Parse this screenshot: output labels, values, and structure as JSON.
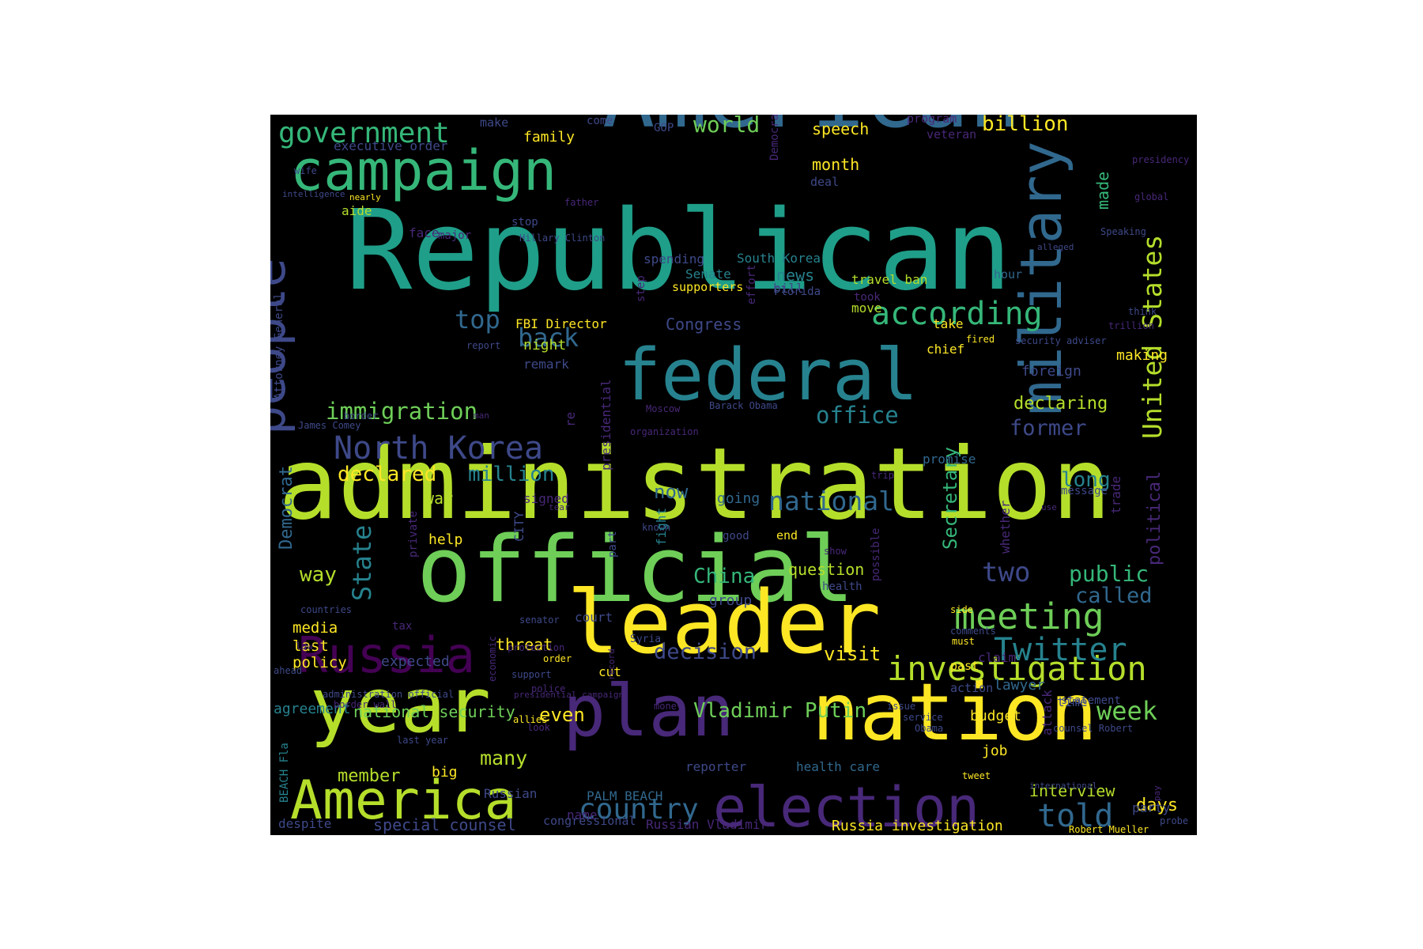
{
  "background": "#000000",
  "palette": {
    "dark_purple": "#440154",
    "purple": "#482878",
    "indigo": "#3e4989",
    "blue": "#31688e",
    "teal": "#26828e",
    "green_teal": "#1f9e89",
    "green": "#35b779",
    "light_green": "#6ece58",
    "lime": "#b5de2b",
    "yellow": "#fde725"
  },
  "words": [
    {
      "text": "administration",
      "color": "#b5de2b"
    },
    {
      "text": "Republican",
      "color": "#1f9e89"
    },
    {
      "text": "official",
      "color": "#6ece58"
    },
    {
      "text": "American",
      "color": "#31688e"
    },
    {
      "text": "nation",
      "color": "#fde725"
    },
    {
      "text": "leader",
      "color": "#fde725"
    },
    {
      "text": "year",
      "color": "#b5de2b"
    },
    {
      "text": "plan",
      "color": "#482878"
    },
    {
      "text": "federal",
      "color": "#26828e"
    },
    {
      "text": "election",
      "color": "#482878"
    },
    {
      "text": "America",
      "color": "#b5de2b"
    },
    {
      "text": "campaign",
      "color": "#35b779"
    },
    {
      "text": "military",
      "color": "#31688e"
    },
    {
      "text": "people",
      "color": "#3e4989"
    },
    {
      "text": "Russia",
      "color": "#440154"
    },
    {
      "text": "investigation",
      "color": "#b5de2b"
    },
    {
      "text": "meeting",
      "color": "#6ece58"
    },
    {
      "text": "Twitter",
      "color": "#26828e"
    },
    {
      "text": "according",
      "color": "#35b779"
    },
    {
      "text": "government",
      "color": "#35b779"
    },
    {
      "text": "North Korea",
      "color": "#3e4989"
    },
    {
      "text": "United States",
      "color": "#b5de2b"
    },
    {
      "text": "State",
      "color": "#26828e"
    },
    {
      "text": "told",
      "color": "#31688e"
    },
    {
      "text": "country",
      "color": "#31688e"
    },
    {
      "text": "immigration",
      "color": "#6ece58"
    },
    {
      "text": "office",
      "color": "#26828e"
    },
    {
      "text": "national",
      "color": "#31688e"
    },
    {
      "text": "top",
      "color": "#31688e"
    },
    {
      "text": "back",
      "color": "#31688e"
    },
    {
      "text": "two",
      "color": "#3e4989"
    },
    {
      "text": "week",
      "color": "#6ece58"
    },
    {
      "text": "Vladimir Putin",
      "color": "#6ece58"
    },
    {
      "text": "decision",
      "color": "#3e4989"
    },
    {
      "text": "declared",
      "color": "#fde725"
    },
    {
      "text": "million",
      "color": "#26828e"
    },
    {
      "text": "former",
      "color": "#3e4989"
    },
    {
      "text": "Secretary",
      "color": "#35b779"
    },
    {
      "text": "public",
      "color": "#35b779"
    },
    {
      "text": "called",
      "color": "#31688e"
    },
    {
      "text": "China",
      "color": "#35b779"
    },
    {
      "text": "many",
      "color": "#b5de2b"
    },
    {
      "text": "member",
      "color": "#b5de2b"
    },
    {
      "text": "even",
      "color": "#fde725"
    },
    {
      "text": "visit",
      "color": "#fde725"
    },
    {
      "text": "long",
      "color": "#26828e"
    },
    {
      "text": "days",
      "color": "#fde725"
    },
    {
      "text": "interview",
      "color": "#b5de2b"
    },
    {
      "text": "political",
      "color": "#482878"
    },
    {
      "text": "Democrat",
      "color": "#31688e"
    },
    {
      "text": "world",
      "color": "#6ece58"
    },
    {
      "text": "billion",
      "color": "#fde725"
    },
    {
      "text": "declaring",
      "color": "#b5de2b"
    },
    {
      "text": "way",
      "color": "#b5de2b"
    },
    {
      "text": "now",
      "color": "#31688e"
    },
    {
      "text": "national security",
      "color": "#6ece58"
    },
    {
      "text": "special counsel",
      "color": "#3e4989"
    },
    {
      "text": "Russia investigation",
      "color": "#fde725"
    },
    {
      "text": "speech",
      "color": "#fde725"
    },
    {
      "text": "month",
      "color": "#fde725"
    },
    {
      "text": "made",
      "color": "#35b779"
    },
    {
      "text": "war",
      "color": "#b5de2b"
    },
    {
      "text": "news",
      "color": "#26828e"
    },
    {
      "text": "Congress",
      "color": "#3e4989"
    },
    {
      "text": "question",
      "color": "#b5de2b"
    },
    {
      "text": "threat",
      "color": "#fde725"
    },
    {
      "text": "media",
      "color": "#fde725"
    },
    {
      "text": "last",
      "color": "#fde725"
    },
    {
      "text": "policy",
      "color": "#fde725"
    },
    {
      "text": "expected",
      "color": "#3e4989"
    },
    {
      "text": "agreement",
      "color": "#26828e"
    },
    {
      "text": "job",
      "color": "#fde725"
    },
    {
      "text": "budget",
      "color": "#fde725"
    },
    {
      "text": "lawyer",
      "color": "#31688e"
    },
    {
      "text": "group",
      "color": "#3e4989"
    },
    {
      "text": "family",
      "color": "#fde725"
    },
    {
      "text": "executive order",
      "color": "#3e4989"
    },
    {
      "text": "aide",
      "color": "#b5de2b"
    },
    {
      "text": "night",
      "color": "#b5de2b"
    },
    {
      "text": "help",
      "color": "#fde725"
    },
    {
      "text": "big",
      "color": "#fde725"
    },
    {
      "text": "cut",
      "color": "#fde725"
    },
    {
      "text": "court",
      "color": "#3e4989"
    },
    {
      "text": "Russian",
      "color": "#3e4989"
    },
    {
      "text": "despite",
      "color": "#3e4989"
    },
    {
      "text": "name",
      "color": "#482878"
    },
    {
      "text": "FBI Director",
      "color": "#fde725"
    },
    {
      "text": "remark",
      "color": "#3e4989"
    },
    {
      "text": "signed",
      "color": "#482878"
    },
    {
      "text": "going",
      "color": "#31688e"
    },
    {
      "text": "foreign",
      "color": "#3e4989"
    },
    {
      "text": "making",
      "color": "#fde725"
    },
    {
      "text": "promise",
      "color": "#31688e"
    },
    {
      "text": "message",
      "color": "#3e4989"
    },
    {
      "text": "whether",
      "color": "#482878"
    },
    {
      "text": "trade",
      "color": "#482878"
    },
    {
      "text": "PALM BEACH",
      "color": "#31688e"
    },
    {
      "text": "reporter",
      "color": "#3e4989"
    },
    {
      "text": "health care",
      "color": "#31688e"
    },
    {
      "text": "congressional",
      "color": "#3e4989"
    },
    {
      "text": "Russian Vladimir",
      "color": "#482878"
    },
    {
      "text": "party",
      "color": "#3e4989"
    },
    {
      "text": "statement",
      "color": "#3e4989"
    },
    {
      "text": "action",
      "color": "#3e4989"
    },
    {
      "text": "past",
      "color": "#fde725"
    },
    {
      "text": "time",
      "color": "#3e4989"
    },
    {
      "text": "attack",
      "color": "#482878"
    },
    {
      "text": "claim",
      "color": "#482878"
    },
    {
      "text": "South Korea",
      "color": "#26828e"
    },
    {
      "text": "travel ban",
      "color": "#b5de2b"
    },
    {
      "text": "Senate",
      "color": "#26828e"
    },
    {
      "text": "spending",
      "color": "#3e4989"
    },
    {
      "text": "supporters",
      "color": "#fde725"
    },
    {
      "text": "bill",
      "color": "#3e4989"
    },
    {
      "text": "move",
      "color": "#b5de2b"
    },
    {
      "text": "take",
      "color": "#fde725"
    },
    {
      "text": "chief",
      "color": "#fde725"
    },
    {
      "text": "hour",
      "color": "#31688e"
    },
    {
      "text": "deal",
      "color": "#3e4989"
    },
    {
      "text": "Democratic",
      "color": "#482878"
    },
    {
      "text": "program",
      "color": "#482878"
    },
    {
      "text": "veteran",
      "color": "#482878"
    },
    {
      "text": "GOP",
      "color": "#3e4989"
    },
    {
      "text": "make",
      "color": "#3e4989"
    },
    {
      "text": "come",
      "color": "#3e4989"
    },
    {
      "text": "face",
      "color": "#482878"
    },
    {
      "text": "major",
      "color": "#482878"
    },
    {
      "text": "stop",
      "color": "#3e4989"
    },
    {
      "text": "Hillary Clinton",
      "color": "#3e4989"
    },
    {
      "text": "step",
      "color": "#482878"
    },
    {
      "text": "effort",
      "color": "#482878"
    },
    {
      "text": "Florida",
      "color": "#3e4989"
    },
    {
      "text": "took",
      "color": "#482878"
    },
    {
      "text": "end",
      "color": "#fde725"
    },
    {
      "text": "good",
      "color": "#3e4989"
    },
    {
      "text": "known",
      "color": "#3e4989"
    },
    {
      "text": "fight",
      "color": "#26828e"
    },
    {
      "text": "part",
      "color": "#3e4989"
    },
    {
      "text": "presidential",
      "color": "#482878"
    },
    {
      "text": "CITY",
      "color": "#3e4989"
    },
    {
      "text": "private",
      "color": "#482878"
    },
    {
      "text": "tax",
      "color": "#482878"
    },
    {
      "text": "possible",
      "color": "#482878"
    },
    {
      "text": "health",
      "color": "#3e4989"
    },
    {
      "text": "show",
      "color": "#482878"
    },
    {
      "text": "side",
      "color": "#fde725"
    },
    {
      "text": "comments",
      "color": "#3e4989"
    },
    {
      "text": "must",
      "color": "#fde725"
    },
    {
      "text": "Syria",
      "color": "#3e4989"
    },
    {
      "text": "order",
      "color": "#fde725"
    },
    {
      "text": "economic",
      "color": "#482878"
    },
    {
      "text": "support",
      "color": "#3e4989"
    },
    {
      "text": "police",
      "color": "#482878"
    },
    {
      "text": "record",
      "color": "#482878"
    },
    {
      "text": "money",
      "color": "#482878"
    },
    {
      "text": "protection",
      "color": "#482878"
    },
    {
      "text": "senator",
      "color": "#3e4989"
    },
    {
      "text": "countries",
      "color": "#3e4989"
    },
    {
      "text": "issue",
      "color": "#3e4989"
    },
    {
      "text": "service",
      "color": "#3e4989"
    },
    {
      "text": "Obama",
      "color": "#3e4989"
    },
    {
      "text": "counsel Robert",
      "color": "#3e4989"
    },
    {
      "text": "tweet",
      "color": "#fde725"
    },
    {
      "text": "international",
      "color": "#3e4989"
    },
    {
      "text": "Robert Mueller",
      "color": "#fde725"
    },
    {
      "text": "probe",
      "color": "#3e4989"
    },
    {
      "text": "pay",
      "color": "#482878"
    },
    {
      "text": "last year",
      "color": "#3e4989"
    },
    {
      "text": "presidential campaign",
      "color": "#482878"
    },
    {
      "text": "allies",
      "color": "#fde725"
    },
    {
      "text": "look",
      "color": "#482878"
    },
    {
      "text": "administration official",
      "color": "#3e4989"
    },
    {
      "text": "border wall",
      "color": "#482878"
    },
    {
      "text": "BEACH Fla",
      "color": "#26828e"
    },
    {
      "text": "law",
      "color": "#482878"
    },
    {
      "text": "ahead",
      "color": "#3e4989"
    },
    {
      "text": "Attorney General",
      "color": "#3e4989"
    },
    {
      "text": "James Comey",
      "color": "#3e4989"
    },
    {
      "text": "border",
      "color": "#3e4989"
    },
    {
      "text": "report",
      "color": "#3e4989"
    },
    {
      "text": "re",
      "color": "#482878"
    },
    {
      "text": "Moscow",
      "color": "#482878"
    },
    {
      "text": "Barack Obama",
      "color": "#3e4989"
    },
    {
      "text": "organization",
      "color": "#482878"
    },
    {
      "text": "man",
      "color": "#482878"
    },
    {
      "text": "trip",
      "color": "#482878"
    },
    {
      "text": "use",
      "color": "#482878"
    },
    {
      "text": "fired",
      "color": "#fde725"
    },
    {
      "text": "security adviser",
      "color": "#3e4989"
    },
    {
      "text": "trillion",
      "color": "#482878"
    },
    {
      "text": "think",
      "color": "#3e4989"
    },
    {
      "text": "alleged",
      "color": "#3e4989"
    },
    {
      "text": "Speaking",
      "color": "#3e4989"
    },
    {
      "text": "presidency",
      "color": "#482878"
    },
    {
      "text": "global",
      "color": "#482878"
    },
    {
      "text": "father",
      "color": "#482878"
    },
    {
      "text": "wife",
      "color": "#3e4989"
    },
    {
      "text": "intelligence",
      "color": "#3e4989"
    },
    {
      "text": "nearly",
      "color": "#fde725"
    },
    {
      "text": "tear",
      "color": "#482878"
    }
  ]
}
